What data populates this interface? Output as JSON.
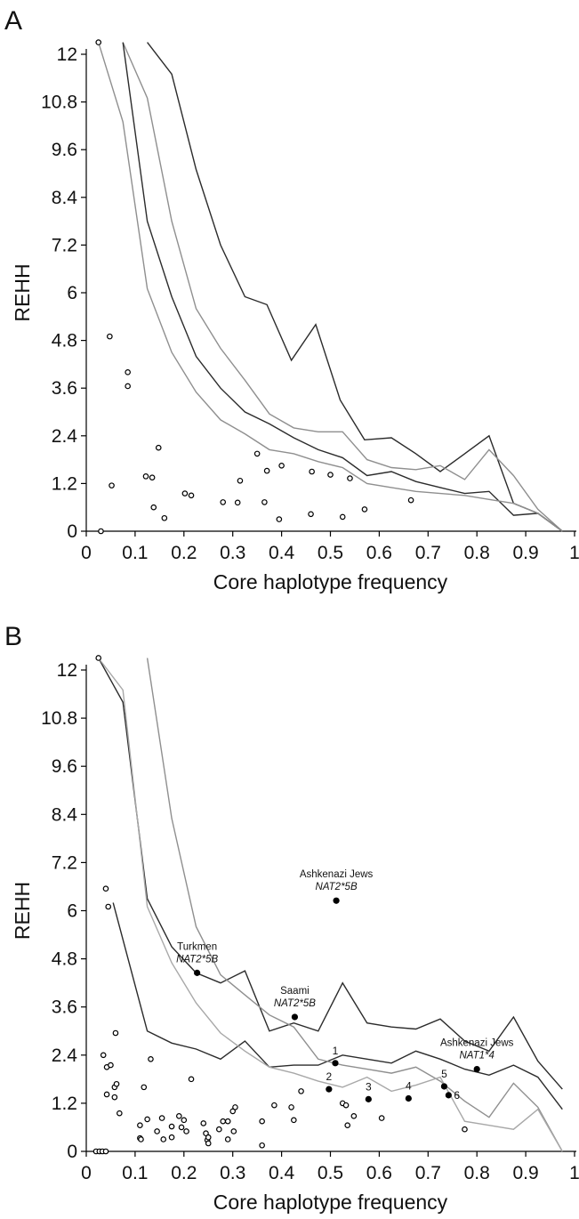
{
  "colors": {
    "dark_line": "#2b2b2b",
    "light_line": "#8f8f8f",
    "lighter_line": "#a8a8a8",
    "point": "#000000"
  },
  "chart_data": [
    {
      "panel": "A",
      "type": "scatter",
      "xlabel": "Core haplotype frequency",
      "ylabel": "REHH",
      "xlim": [
        0,
        1
      ],
      "ylim": [
        0,
        12
      ],
      "x_ticks": [
        "0",
        "0.1",
        "0.2",
        "0.3",
        "0.4",
        "0.5",
        "0.6",
        "0.7",
        "0.8",
        "0.9",
        "1"
      ],
      "y_ticks": [
        "0",
        "1.2",
        "2.4",
        "3.6",
        "4.8",
        "6",
        "7.2",
        "8.4",
        "9.6",
        "10.8",
        "12"
      ],
      "grid": false,
      "points": [
        {
          "x": 0.025,
          "y": 12.3
        },
        {
          "x": 0.03,
          "y": 0.0
        },
        {
          "x": 0.048,
          "y": 4.9
        },
        {
          "x": 0.052,
          "y": 1.15
        },
        {
          "x": 0.085,
          "y": 4.0
        },
        {
          "x": 0.085,
          "y": 3.65
        },
        {
          "x": 0.122,
          "y": 1.38
        },
        {
          "x": 0.135,
          "y": 1.35
        },
        {
          "x": 0.138,
          "y": 0.6
        },
        {
          "x": 0.148,
          "y": 2.1
        },
        {
          "x": 0.16,
          "y": 0.33
        },
        {
          "x": 0.202,
          "y": 0.95
        },
        {
          "x": 0.215,
          "y": 0.9
        },
        {
          "x": 0.28,
          "y": 0.73
        },
        {
          "x": 0.31,
          "y": 0.72
        },
        {
          "x": 0.315,
          "y": 1.27
        },
        {
          "x": 0.35,
          "y": 1.95
        },
        {
          "x": 0.365,
          "y": 0.73
        },
        {
          "x": 0.37,
          "y": 1.52
        },
        {
          "x": 0.395,
          "y": 0.3
        },
        {
          "x": 0.4,
          "y": 1.65
        },
        {
          "x": 0.46,
          "y": 0.43
        },
        {
          "x": 0.462,
          "y": 1.5
        },
        {
          "x": 0.5,
          "y": 1.42
        },
        {
          "x": 0.525,
          "y": 0.36
        },
        {
          "x": 0.54,
          "y": 1.33
        },
        {
          "x": 0.57,
          "y": 0.55
        },
        {
          "x": 0.665,
          "y": 0.78
        }
      ],
      "lines": [
        {
          "shade": "dark",
          "x": [
            0.125,
            0.175,
            0.225,
            0.275,
            0.325,
            0.37,
            0.42,
            0.47,
            0.52,
            0.57,
            0.625,
            0.675,
            0.725,
            0.775,
            0.825,
            0.875,
            0.925,
            0.975
          ],
          "y": [
            12.3,
            11.5,
            9.1,
            7.2,
            5.9,
            5.7,
            4.3,
            5.2,
            3.3,
            2.3,
            2.35,
            1.95,
            1.5,
            1.95,
            2.4,
            0.7,
            0.45,
            0.0
          ]
        },
        {
          "shade": "light",
          "x": [
            0.075,
            0.125,
            0.175,
            0.225,
            0.275,
            0.325,
            0.375,
            0.425,
            0.475,
            0.525,
            0.575,
            0.625,
            0.675,
            0.725,
            0.775,
            0.825,
            0.875,
            0.925,
            0.975
          ],
          "y": [
            12.3,
            10.9,
            7.8,
            5.6,
            4.6,
            3.8,
            2.95,
            2.6,
            2.5,
            2.5,
            1.8,
            1.6,
            1.55,
            1.65,
            1.3,
            2.05,
            1.4,
            0.55,
            0.0
          ]
        },
        {
          "shade": "dark",
          "x": [
            0.075,
            0.125,
            0.175,
            0.225,
            0.275,
            0.325,
            0.375,
            0.425,
            0.475,
            0.525,
            0.575,
            0.625,
            0.675,
            0.725,
            0.775,
            0.825,
            0.875,
            0.925,
            0.975
          ],
          "y": [
            12.3,
            7.8,
            5.9,
            4.4,
            3.6,
            3.0,
            2.7,
            2.35,
            2.05,
            1.85,
            1.4,
            1.5,
            1.25,
            1.1,
            0.95,
            1.0,
            0.4,
            0.45,
            0.0
          ]
        },
        {
          "shade": "light",
          "x": [
            0.025,
            0.075,
            0.125,
            0.175,
            0.225,
            0.275,
            0.325,
            0.375,
            0.425,
            0.475,
            0.525,
            0.575,
            0.625,
            0.675,
            0.725,
            0.775,
            0.825,
            0.875,
            0.925,
            0.975
          ],
          "y": [
            12.3,
            10.3,
            6.1,
            4.5,
            3.5,
            2.8,
            2.45,
            2.05,
            1.95,
            1.75,
            1.6,
            1.2,
            1.1,
            1.0,
            0.95,
            0.9,
            0.8,
            0.7,
            0.45,
            0.0
          ]
        }
      ]
    },
    {
      "panel": "B",
      "type": "scatter",
      "xlabel": "Core haplotype frequency",
      "ylabel": "REHH",
      "xlim": [
        0,
        1
      ],
      "ylim": [
        0,
        12
      ],
      "x_ticks": [
        "0",
        "0.1",
        "0.2",
        "0.3",
        "0.4",
        "0.5",
        "0.6",
        "0.7",
        "0.8",
        "0.9",
        "1"
      ],
      "y_ticks": [
        "0",
        "1.2",
        "2.4",
        "3.6",
        "4.8",
        "6",
        "7.2",
        "8.4",
        "9.6",
        "10.8",
        "12"
      ],
      "grid": false,
      "points": [
        {
          "x": 0.025,
          "y": 12.3
        },
        {
          "x": 0.02,
          "y": 0.0
        },
        {
          "x": 0.027,
          "y": 0.0
        },
        {
          "x": 0.033,
          "y": 0.0
        },
        {
          "x": 0.04,
          "y": 0.0
        },
        {
          "x": 0.035,
          "y": 2.4
        },
        {
          "x": 0.04,
          "y": 6.55
        },
        {
          "x": 0.045,
          "y": 6.1
        },
        {
          "x": 0.042,
          "y": 2.1
        },
        {
          "x": 0.05,
          "y": 2.15
        },
        {
          "x": 0.042,
          "y": 1.42
        },
        {
          "x": 0.06,
          "y": 2.95
        },
        {
          "x": 0.058,
          "y": 1.6
        },
        {
          "x": 0.062,
          "y": 1.68
        },
        {
          "x": 0.058,
          "y": 1.35
        },
        {
          "x": 0.068,
          "y": 0.95
        },
        {
          "x": 0.11,
          "y": 0.65
        },
        {
          "x": 0.11,
          "y": 0.33
        },
        {
          "x": 0.112,
          "y": 0.3
        },
        {
          "x": 0.118,
          "y": 1.6
        },
        {
          "x": 0.125,
          "y": 0.8
        },
        {
          "x": 0.132,
          "y": 2.3
        },
        {
          "x": 0.145,
          "y": 0.5
        },
        {
          "x": 0.155,
          "y": 0.83
        },
        {
          "x": 0.158,
          "y": 0.3
        },
        {
          "x": 0.175,
          "y": 0.35
        },
        {
          "x": 0.175,
          "y": 0.62
        },
        {
          "x": 0.19,
          "y": 0.88
        },
        {
          "x": 0.195,
          "y": 0.6
        },
        {
          "x": 0.2,
          "y": 0.78
        },
        {
          "x": 0.205,
          "y": 0.5
        },
        {
          "x": 0.215,
          "y": 1.8
        },
        {
          "x": 0.24,
          "y": 0.7
        },
        {
          "x": 0.245,
          "y": 0.45
        },
        {
          "x": 0.248,
          "y": 0.28
        },
        {
          "x": 0.25,
          "y": 0.2
        },
        {
          "x": 0.25,
          "y": 0.35
        },
        {
          "x": 0.272,
          "y": 0.55
        },
        {
          "x": 0.28,
          "y": 0.75
        },
        {
          "x": 0.29,
          "y": 0.75
        },
        {
          "x": 0.29,
          "y": 0.3
        },
        {
          "x": 0.3,
          "y": 1.0
        },
        {
          "x": 0.305,
          "y": 1.1
        },
        {
          "x": 0.302,
          "y": 0.5
        },
        {
          "x": 0.36,
          "y": 0.75
        },
        {
          "x": 0.36,
          "y": 0.15
        },
        {
          "x": 0.385,
          "y": 1.15
        },
        {
          "x": 0.42,
          "y": 1.1
        },
        {
          "x": 0.425,
          "y": 0.78
        },
        {
          "x": 0.44,
          "y": 1.5
        },
        {
          "x": 0.525,
          "y": 1.2
        },
        {
          "x": 0.532,
          "y": 1.15
        },
        {
          "x": 0.535,
          "y": 0.65
        },
        {
          "x": 0.548,
          "y": 0.88
        },
        {
          "x": 0.605,
          "y": 0.83
        },
        {
          "x": 0.775,
          "y": 0.55
        }
      ],
      "highlighted_points": [
        {
          "x": 0.512,
          "y": 6.25,
          "label": "Ashkenazi Jews",
          "allele": "NAT2*5B"
        },
        {
          "x": 0.227,
          "y": 4.45,
          "label": "Turkmen",
          "allele": "NAT2*5B"
        },
        {
          "x": 0.427,
          "y": 3.35,
          "label": "Saami",
          "allele": "NAT2*5B"
        },
        {
          "x": 0.8,
          "y": 2.05,
          "label": "Ashkenazi Jews",
          "allele": "NAT1*4"
        },
        {
          "x": 0.51,
          "y": 2.2,
          "label": "1"
        },
        {
          "x": 0.497,
          "y": 1.55,
          "label": "2"
        },
        {
          "x": 0.578,
          "y": 1.3,
          "label": "3"
        },
        {
          "x": 0.66,
          "y": 1.32,
          "label": "4"
        },
        {
          "x": 0.733,
          "y": 1.62,
          "label": "5"
        },
        {
          "x": 0.742,
          "y": 1.4,
          "label": "6"
        }
      ],
      "lines": [
        {
          "shade": "dark",
          "x": [
            0.025,
            0.075,
            0.125,
            0.175,
            0.225,
            0.275,
            0.325,
            0.375,
            0.425,
            0.475,
            0.525,
            0.575,
            0.625,
            0.675,
            0.725,
            0.775,
            0.825,
            0.875,
            0.925,
            0.975
          ],
          "y": [
            12.3,
            11.2,
            6.3,
            5.1,
            4.45,
            4.2,
            4.5,
            3.0,
            3.2,
            3.0,
            4.2,
            3.2,
            3.1,
            3.05,
            3.3,
            2.75,
            2.5,
            3.35,
            2.25,
            1.55
          ]
        },
        {
          "shade": "dark",
          "x": [
            0.055,
            0.125,
            0.175,
            0.225,
            0.275,
            0.325,
            0.375,
            0.425,
            0.475,
            0.525,
            0.575,
            0.625,
            0.675,
            0.725,
            0.775,
            0.825,
            0.875,
            0.925,
            0.975
          ],
          "y": [
            6.2,
            3.0,
            2.7,
            2.55,
            2.3,
            2.75,
            2.1,
            2.15,
            2.15,
            2.4,
            2.3,
            2.2,
            2.5,
            2.3,
            2.05,
            1.9,
            2.15,
            1.85,
            1.05
          ]
        },
        {
          "shade": "light",
          "x": [
            0.125,
            0.175,
            0.225,
            0.275,
            0.325,
            0.375,
            0.425,
            0.475,
            0.525,
            0.575,
            0.625,
            0.675,
            0.725,
            0.775,
            0.825,
            0.875,
            0.925,
            0.975
          ],
          "y": [
            12.3,
            8.3,
            5.6,
            4.4,
            3.9,
            3.4,
            3.1,
            2.3,
            2.15,
            2.05,
            1.95,
            2.1,
            1.75,
            1.25,
            0.85,
            1.7,
            1.1,
            0.0
          ]
        },
        {
          "shade": "lighter",
          "x": [
            0.025,
            0.075,
            0.125,
            0.175,
            0.225,
            0.275,
            0.325,
            0.375,
            0.425,
            0.475,
            0.525,
            0.575,
            0.625,
            0.675,
            0.725,
            0.775,
            0.825,
            0.875,
            0.925,
            0.975
          ],
          "y": [
            12.3,
            11.5,
            6.1,
            4.7,
            3.7,
            2.95,
            2.5,
            2.1,
            1.95,
            1.75,
            1.6,
            1.85,
            1.5,
            1.65,
            1.85,
            0.75,
            0.65,
            0.55,
            1.05,
            0.0
          ]
        }
      ]
    }
  ]
}
